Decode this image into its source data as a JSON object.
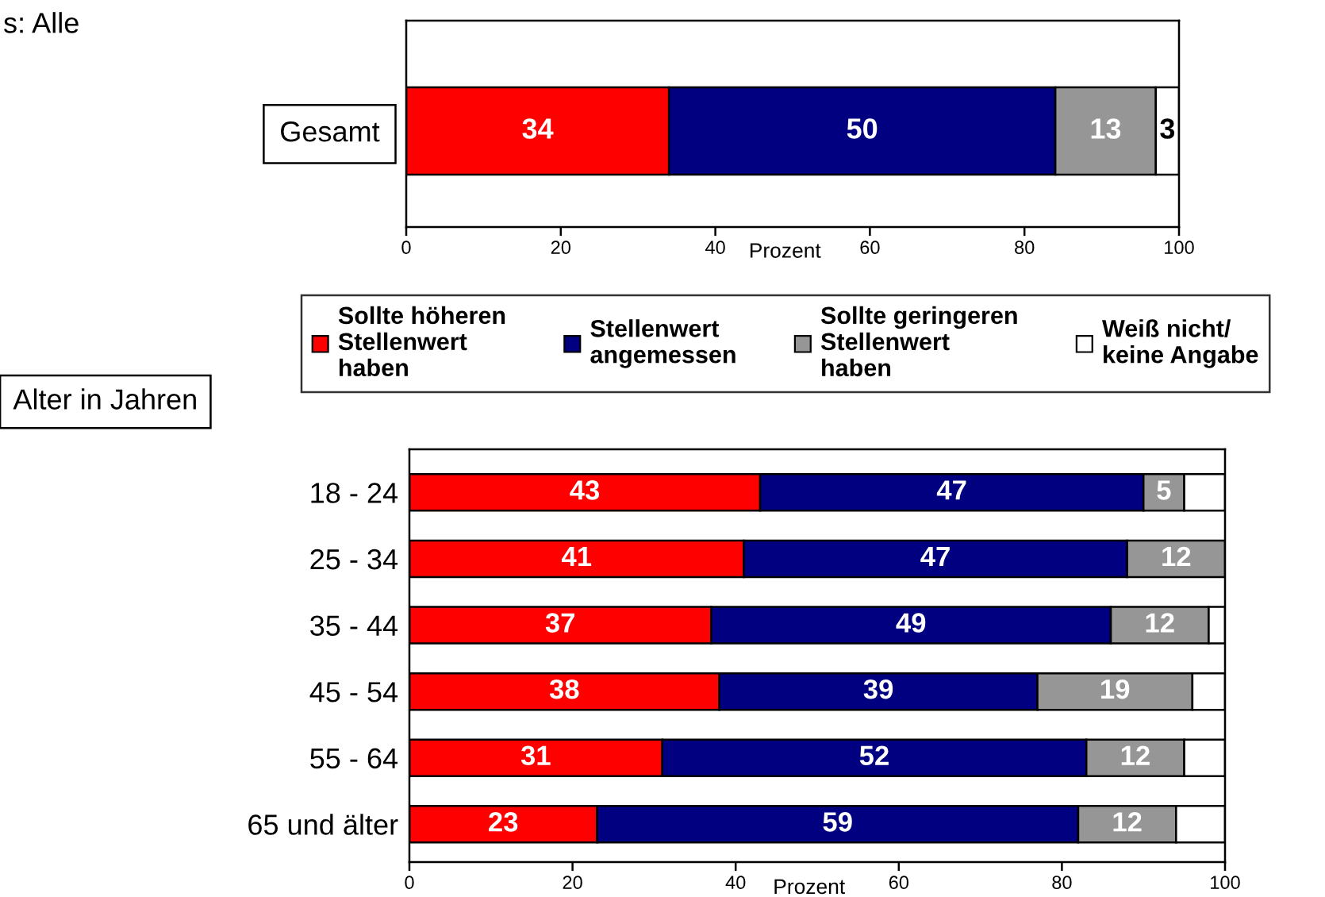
{
  "chart_data": [
    {
      "type": "bar",
      "orientation": "horizontal",
      "stacked": true,
      "categories": [
        "Gesamt"
      ],
      "xlabel": "Prozent",
      "xlim": [
        0,
        100
      ],
      "xticks": [
        0,
        20,
        40,
        60,
        80,
        100
      ],
      "annotations": [
        "s: Alle"
      ],
      "legend": "bottom",
      "data_labels": true,
      "series": [
        {
          "name": "Sollte höheren\nStellenwert\nhaben",
          "color": "#ff0000",
          "values": [
            34
          ]
        },
        {
          "name": "Stellenwert\nangemessen",
          "color": "#000080",
          "values": [
            50
          ]
        },
        {
          "name": "Sollte geringeren\nStellenwert\nhaben",
          "color": "#969696",
          "values": [
            13
          ]
        },
        {
          "name": "Weiß nicht/\nkeine Angabe",
          "color": "#ffffff",
          "values": [
            3
          ]
        }
      ]
    },
    {
      "type": "bar",
      "orientation": "horizontal",
      "stacked": true,
      "categories": [
        "18 - 24",
        "25 - 34",
        "35 - 44",
        "45 - 54",
        "55 - 64",
        "65 und älter"
      ],
      "ylabel": "Alter in Jahren",
      "xlabel": "Prozent",
      "xlim": [
        0,
        100
      ],
      "xticks": [
        0,
        20,
        40,
        60,
        80,
        100
      ],
      "series": [
        {
          "color": "#ff0000",
          "values": [
            43,
            41,
            37,
            38,
            31,
            23
          ],
          "value_labels": [
            "43",
            "41",
            "37",
            "38",
            "31",
            "23"
          ]
        },
        {
          "color": "#000080",
          "values": [
            47,
            47,
            49,
            39,
            52,
            59
          ],
          "value_labels": [
            "47",
            "47",
            "49",
            "39",
            "52",
            "59"
          ]
        },
        {
          "color": "#969696",
          "values": [
            5,
            12,
            12,
            19,
            12,
            12
          ],
          "value_labels": [
            "5",
            "12",
            "12",
            "19",
            "12",
            "12"
          ]
        },
        {
          "color": "#ffffff",
          "values": [
            5,
            null,
            2,
            4,
            5,
            6
          ],
          "value_labels": [
            null,
            null,
            null,
            null,
            null,
            null
          ]
        }
      ]
    }
  ]
}
